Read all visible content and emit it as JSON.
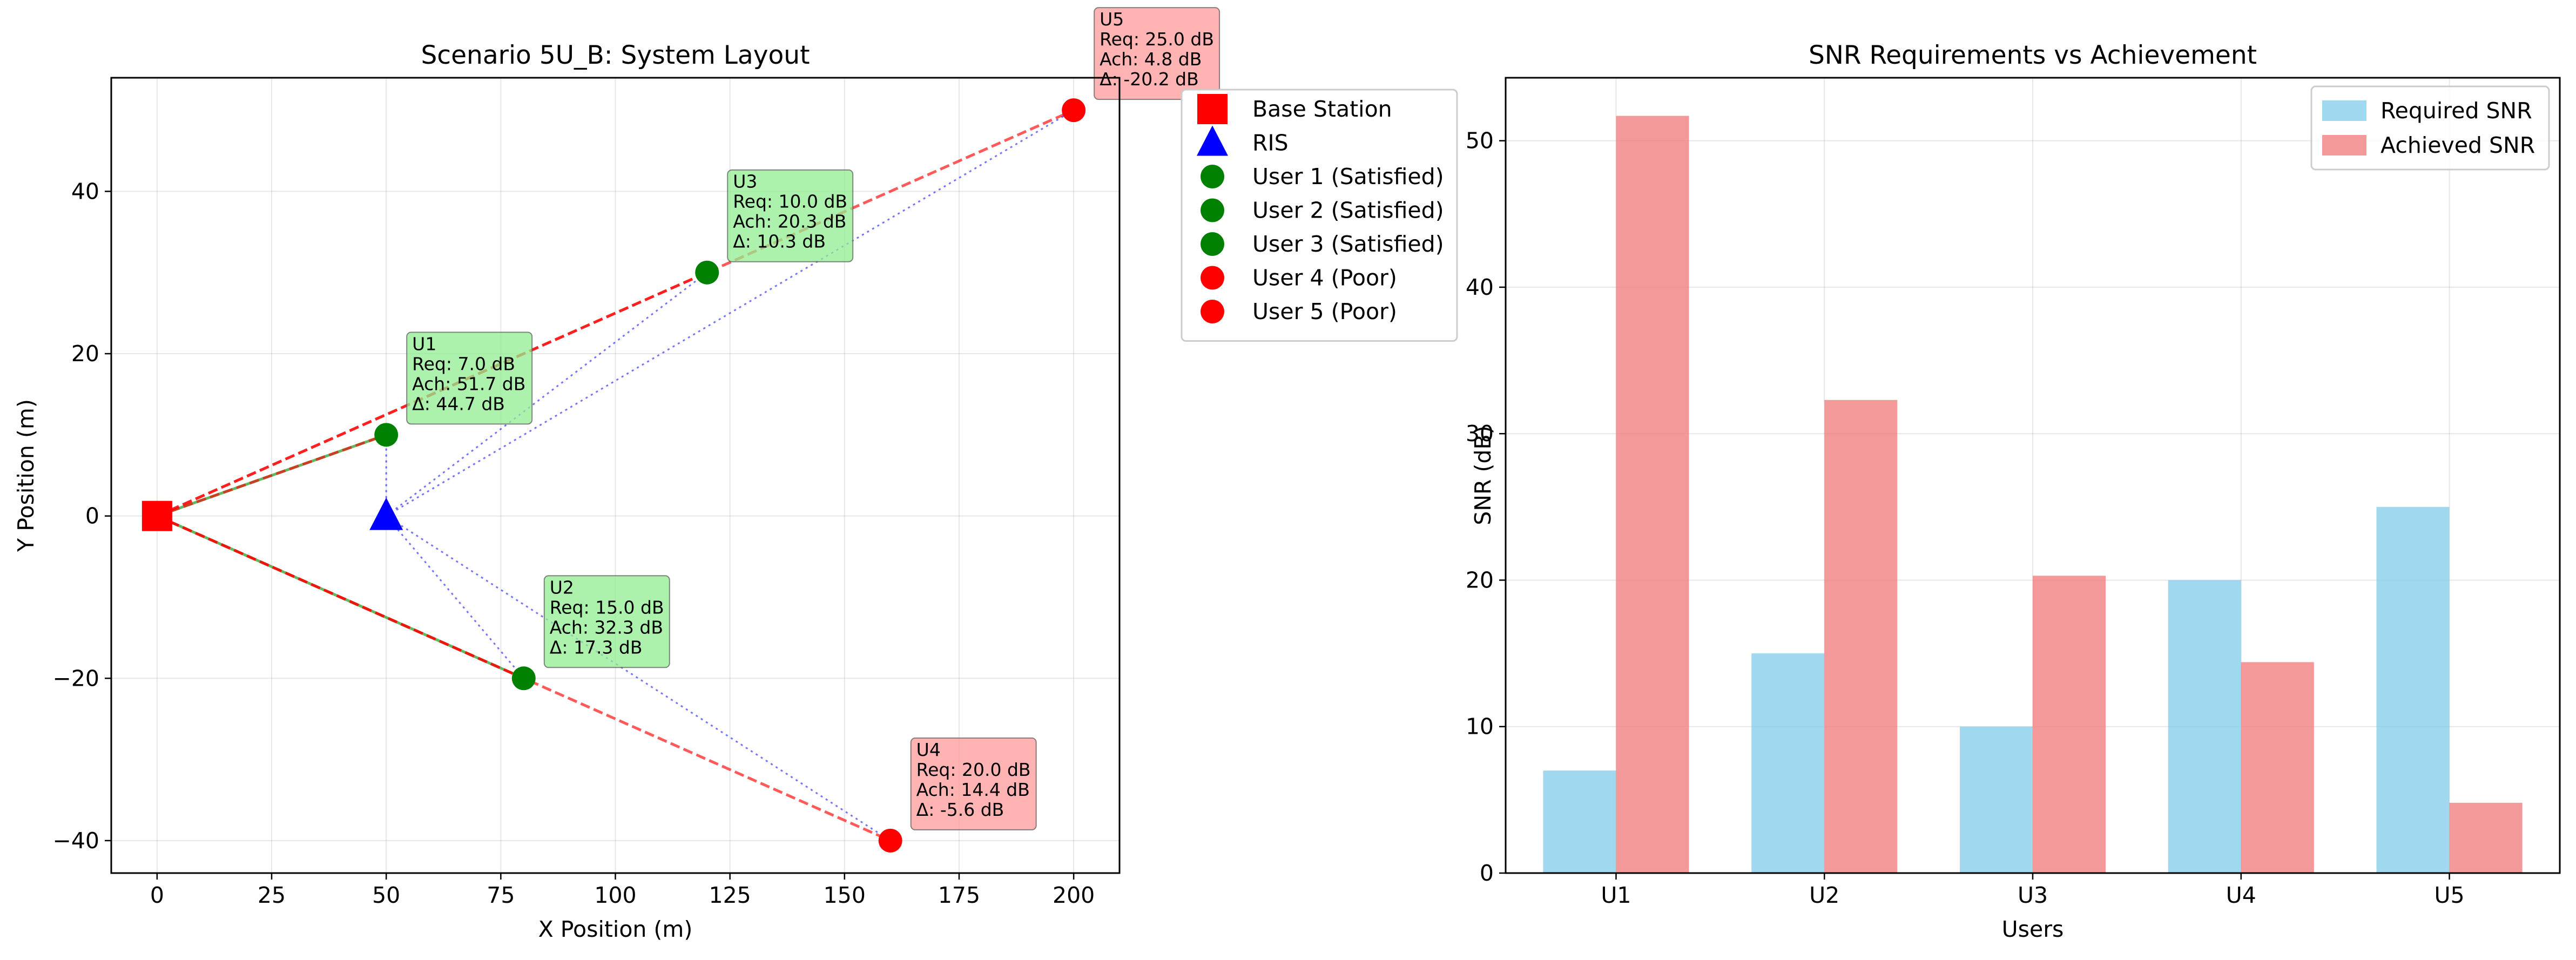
{
  "colors": {
    "base_station": "#ff0000",
    "ris": "#0000ff",
    "satisfied": "#008000",
    "poor": "#ff0000",
    "required": "#87ceeb",
    "achieved": "#f08080",
    "link_direct_good": "#2ca02c",
    "link_direct_bad": "#ff0000",
    "link_ris": "#0000ff",
    "box_good": "#90ee90",
    "box_poor": "#ff9999"
  },
  "chart_data": [
    {
      "type": "scatter",
      "title": "Scenario 5U_B: System Layout",
      "xlabel": "X Position (m)",
      "ylabel": "Y Position (m)",
      "xlim": [
        -10,
        210
      ],
      "ylim": [
        -44,
        54
      ],
      "xticks": [
        0,
        25,
        50,
        75,
        100,
        125,
        150,
        175,
        200
      ],
      "yticks": [
        -40,
        -20,
        0,
        20,
        40
      ],
      "grid": true,
      "legend_position": "outside-right",
      "base_station": {
        "label": "Base Station",
        "x": 0,
        "y": 0,
        "icon": "square"
      },
      "ris": {
        "label": "RIS",
        "x": 50,
        "y": 0,
        "icon": "triangle"
      },
      "users": [
        {
          "name": "U1",
          "legend": "User 1 (Satisfied)",
          "status": "satisfied",
          "x": 50,
          "y": 10,
          "req": "Req: 7.0 dB",
          "ach": "Ach: 51.7 dB",
          "delta": "Δ: 44.7 dB"
        },
        {
          "name": "U2",
          "legend": "User 2 (Satisfied)",
          "status": "satisfied",
          "x": 80,
          "y": -20,
          "req": "Req: 15.0 dB",
          "ach": "Ach: 32.3 dB",
          "delta": "Δ: 17.3 dB"
        },
        {
          "name": "U3",
          "legend": "User 3 (Satisfied)",
          "status": "satisfied",
          "x": 120,
          "y": 30,
          "req": "Req: 10.0 dB",
          "ach": "Ach: 20.3 dB",
          "delta": "Δ: 10.3 dB"
        },
        {
          "name": "U4",
          "legend": "User 4 (Poor)",
          "status": "poor",
          "x": 160,
          "y": -40,
          "req": "Req: 20.0 dB",
          "ach": "Ach: 14.4 dB",
          "delta": "Δ: -5.6 dB"
        },
        {
          "name": "U5",
          "legend": "User 5 (Poor)",
          "status": "poor",
          "x": 200,
          "y": 50,
          "req": "Req: 25.0 dB",
          "ach": "Ach: 4.8 dB",
          "delta": "Δ: -20.2 dB"
        }
      ]
    },
    {
      "type": "bar",
      "title": "SNR Requirements vs Achievement",
      "xlabel": "Users",
      "ylabel": "SNR (dB)",
      "categories": [
        "U1",
        "U2",
        "U3",
        "U4",
        "U5"
      ],
      "ylim": [
        0,
        54.3
      ],
      "yticks": [
        0,
        10,
        20,
        30,
        40,
        50
      ],
      "grid": true,
      "legend_position": "upper-right",
      "series": [
        {
          "name": "Required SNR",
          "values": [
            7.0,
            15.0,
            10.0,
            20.0,
            25.0
          ]
        },
        {
          "name": "Achieved SNR",
          "values": [
            51.7,
            32.3,
            20.3,
            14.4,
            4.8
          ]
        }
      ]
    }
  ]
}
